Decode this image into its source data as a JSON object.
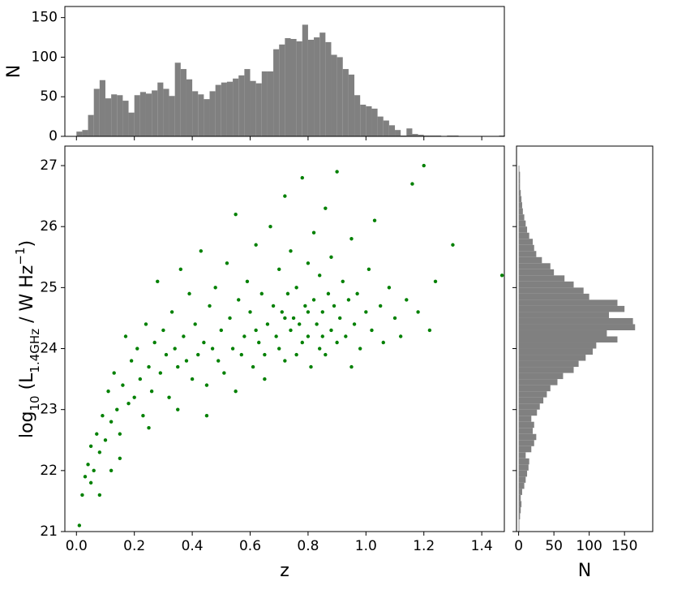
{
  "chart_data": [
    {
      "type": "histogram",
      "color": "#808080",
      "ylabel": "N",
      "bins": [
        0.0,
        0.02,
        0.04,
        0.06,
        0.08,
        0.1,
        0.12,
        0.14,
        0.16,
        0.18,
        0.2,
        0.22,
        0.24,
        0.26,
        0.28,
        0.3,
        0.32,
        0.34,
        0.36,
        0.38,
        0.4,
        0.42,
        0.44,
        0.46,
        0.48,
        0.5,
        0.52,
        0.54,
        0.56,
        0.58,
        0.6,
        0.62,
        0.64,
        0.66,
        0.68,
        0.7,
        0.72,
        0.74,
        0.76,
        0.78,
        0.8,
        0.82,
        0.84,
        0.86,
        0.88,
        0.9,
        0.92,
        0.94,
        0.96,
        0.98,
        1.0,
        1.02,
        1.04,
        1.06,
        1.08,
        1.1,
        1.12,
        1.14,
        1.16,
        1.18,
        1.2,
        1.22,
        1.24,
        1.26,
        1.28,
        1.3,
        1.32,
        1.34,
        1.36,
        1.38,
        1.4,
        1.42,
        1.44,
        1.46,
        1.48
      ],
      "counts": [
        6,
        8,
        27,
        60,
        71,
        48,
        53,
        52,
        45,
        30,
        52,
        56,
        54,
        58,
        68,
        60,
        51,
        93,
        85,
        72,
        57,
        53,
        47,
        57,
        65,
        68,
        69,
        73,
        77,
        85,
        70,
        67,
        82,
        82,
        110,
        116,
        124,
        123,
        120,
        141,
        122,
        125,
        131,
        119,
        103,
        100,
        85,
        78,
        52,
        40,
        38,
        35,
        25,
        20,
        14,
        8,
        1,
        10,
        3,
        2,
        1,
        1,
        1,
        0,
        1,
        1,
        0,
        0,
        0,
        0,
        0,
        0,
        0,
        1
      ],
      "xlim": [
        -0.04,
        1.478
      ],
      "ylim": [
        0,
        164
      ],
      "yticks": [
        0,
        50,
        100,
        150
      ]
    },
    {
      "type": "scatter",
      "color": "#008000",
      "xlabel": "z",
      "ylabel": [
        "log",
        "10",
        " (L",
        "1.4GHz",
        " / W Hz",
        "−1",
        ")"
      ],
      "x": [
        0.01,
        0.02,
        0.03,
        0.04,
        0.05,
        0.05,
        0.06,
        0.07,
        0.08,
        0.09,
        0.1,
        0.11,
        0.12,
        0.13,
        0.14,
        0.15,
        0.16,
        0.17,
        0.18,
        0.19,
        0.2,
        0.21,
        0.22,
        0.23,
        0.24,
        0.25,
        0.26,
        0.27,
        0.28,
        0.29,
        0.3,
        0.31,
        0.32,
        0.33,
        0.34,
        0.35,
        0.36,
        0.37,
        0.38,
        0.39,
        0.4,
        0.41,
        0.42,
        0.43,
        0.44,
        0.45,
        0.46,
        0.47,
        0.48,
        0.49,
        0.5,
        0.51,
        0.52,
        0.53,
        0.54,
        0.55,
        0.56,
        0.57,
        0.58,
        0.59,
        0.6,
        0.61,
        0.62,
        0.63,
        0.64,
        0.65,
        0.66,
        0.67,
        0.68,
        0.69,
        0.7,
        0.7,
        0.71,
        0.72,
        0.72,
        0.73,
        0.74,
        0.74,
        0.75,
        0.76,
        0.76,
        0.77,
        0.78,
        0.78,
        0.79,
        0.8,
        0.8,
        0.81,
        0.82,
        0.82,
        0.83,
        0.84,
        0.84,
        0.85,
        0.86,
        0.86,
        0.87,
        0.88,
        0.88,
        0.89,
        0.9,
        0.9,
        0.91,
        0.92,
        0.93,
        0.94,
        0.95,
        0.96,
        0.97,
        0.98,
        1.0,
        1.01,
        1.02,
        1.03,
        1.05,
        1.06,
        1.08,
        1.1,
        1.12,
        1.14,
        1.16,
        1.18,
        1.2,
        1.22,
        1.24,
        1.3,
        1.47,
        0.95,
        0.65,
        0.55,
        0.45,
        0.35,
        0.25,
        0.15,
        0.08,
        0.12,
        0.62,
        0.72,
        0.85,
        0.8
      ],
      "y": [
        21.1,
        21.6,
        21.9,
        22.1,
        21.8,
        22.4,
        22.0,
        22.6,
        22.3,
        22.9,
        22.5,
        23.3,
        22.8,
        23.6,
        23.0,
        22.6,
        23.4,
        24.2,
        23.1,
        23.8,
        23.2,
        24.0,
        23.5,
        22.9,
        24.4,
        23.7,
        23.3,
        24.1,
        25.1,
        23.6,
        24.3,
        23.9,
        23.2,
        24.6,
        24.0,
        23.7,
        25.3,
        24.2,
        23.8,
        24.9,
        23.5,
        24.4,
        23.9,
        25.6,
        24.1,
        23.4,
        24.7,
        24.0,
        25.0,
        23.8,
        24.3,
        23.6,
        25.4,
        24.5,
        24.0,
        26.2,
        24.8,
        23.9,
        24.2,
        25.1,
        24.6,
        23.7,
        25.7,
        24.1,
        24.9,
        23.9,
        24.4,
        26.0,
        24.7,
        24.2,
        25.3,
        24.0,
        24.6,
        26.5,
        23.8,
        24.9,
        24.3,
        25.6,
        24.5,
        23.9,
        25.0,
        24.4,
        26.8,
        24.1,
        24.7,
        25.4,
        24.2,
        23.7,
        24.8,
        25.9,
        24.4,
        24.0,
        25.2,
        24.6,
        26.3,
        23.9,
        24.9,
        24.3,
        25.5,
        24.7,
        24.1,
        26.9,
        24.5,
        25.1,
        24.2,
        24.8,
        25.8,
        24.4,
        24.9,
        24.0,
        24.6,
        25.3,
        24.3,
        26.1,
        24.7,
        24.1,
        25.0,
        24.5,
        24.2,
        24.8,
        26.7,
        24.6,
        27.0,
        24.3,
        25.1,
        25.7,
        25.2,
        23.7,
        23.5,
        23.3,
        22.9,
        23.0,
        22.7,
        22.2,
        21.6,
        22.0,
        24.3,
        24.5,
        24.2,
        24.6
      ],
      "xlim": [
        -0.04,
        1.478
      ],
      "ylim": [
        21,
        27.32
      ],
      "xticks": [
        {
          "value": 0,
          "label": "0.0"
        },
        {
          "value": 0.2,
          "label": "0.2"
        },
        {
          "value": 0.4,
          "label": "0.4"
        },
        {
          "value": 0.6,
          "label": "0.6"
        },
        {
          "value": 0.8,
          "label": "0.8"
        },
        {
          "value": 1,
          "label": "1.0"
        },
        {
          "value": 1.2,
          "label": "1.2"
        },
        {
          "value": 1.4,
          "label": "1.4"
        }
      ],
      "yticks": [
        21,
        22,
        23,
        24,
        25,
        26,
        27
      ]
    },
    {
      "type": "histogram",
      "orientation": "horizontal",
      "color": "#808080",
      "xlabel": "N",
      "bins": [
        21.0,
        21.1,
        21.2,
        21.3,
        21.4,
        21.5,
        21.6,
        21.7,
        21.8,
        21.9,
        22.0,
        22.1,
        22.2,
        22.3,
        22.4,
        22.5,
        22.6,
        22.7,
        22.8,
        22.9,
        23.0,
        23.1,
        23.2,
        23.3,
        23.4,
        23.5,
        23.6,
        23.7,
        23.8,
        23.9,
        24.0,
        24.1,
        24.2,
        24.3,
        24.4,
        24.5,
        24.6,
        24.7,
        24.8,
        24.9,
        25.0,
        25.1,
        25.2,
        25.3,
        25.4,
        25.5,
        25.6,
        25.7,
        25.8,
        25.9,
        26.0,
        26.1,
        26.2,
        26.3,
        26.4,
        26.5,
        26.6,
        26.7,
        26.8,
        26.9,
        27.0
      ],
      "counts": [
        1,
        1,
        2,
        3,
        4,
        3,
        5,
        8,
        10,
        12,
        14,
        15,
        10,
        18,
        22,
        25,
        20,
        22,
        18,
        26,
        30,
        35,
        40,
        45,
        55,
        63,
        78,
        85,
        95,
        105,
        110,
        140,
        125,
        165,
        162,
        128,
        150,
        140,
        100,
        92,
        78,
        65,
        50,
        45,
        33,
        25,
        22,
        20,
        15,
        12,
        10,
        8,
        6,
        5,
        4,
        3,
        2,
        2,
        2,
        1
      ],
      "xlim": [
        -3,
        190
      ],
      "ylim": [
        21,
        27.32
      ],
      "xticks": [
        0,
        50,
        100,
        150
      ]
    }
  ]
}
